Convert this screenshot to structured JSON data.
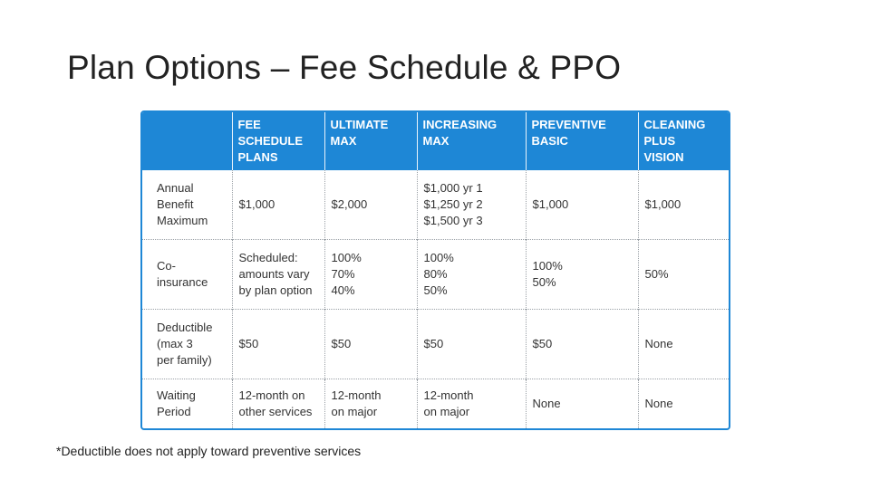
{
  "slide": {
    "title": "Plan Options – Fee Schedule & PPO",
    "footnote": "*Deductible does not apply toward preventive services"
  },
  "table": {
    "corner": "",
    "columns": [
      "FEE\nSCHEDULE\nPLANS",
      "ULTIMATE\nMAX",
      "INCREASING\nMAX",
      "PREVENTIVE\nBASIC",
      "CLEANING\nPLUS\nVISION"
    ],
    "rows": [
      {
        "label": "Annual\nBenefit\nMaximum",
        "cells": [
          "$1,000",
          "$2,000",
          "$1,000 yr 1\n$1,250 yr 2\n$1,500 yr 3",
          "$1,000",
          "$1,000"
        ]
      },
      {
        "label": "Co-\ninsurance",
        "cells": [
          "Scheduled:\namounts vary\nby plan option",
          "100%\n70%\n40%",
          "100%\n80%\n50%",
          "100%\n50%",
          "50%"
        ]
      },
      {
        "label": "Deductible\n(max 3\nper family)",
        "cells": [
          "$50",
          "$50",
          "$50",
          "$50",
          "None"
        ]
      },
      {
        "label": "Waiting\nPeriod",
        "cells": [
          "12-month on\nother services",
          "12-month\non major",
          "12-month\non major",
          "None",
          "None"
        ]
      }
    ]
  },
  "colors": {
    "header_blue": "#1e87d6",
    "header_text": "#ffffff",
    "body_text": "#333333"
  }
}
